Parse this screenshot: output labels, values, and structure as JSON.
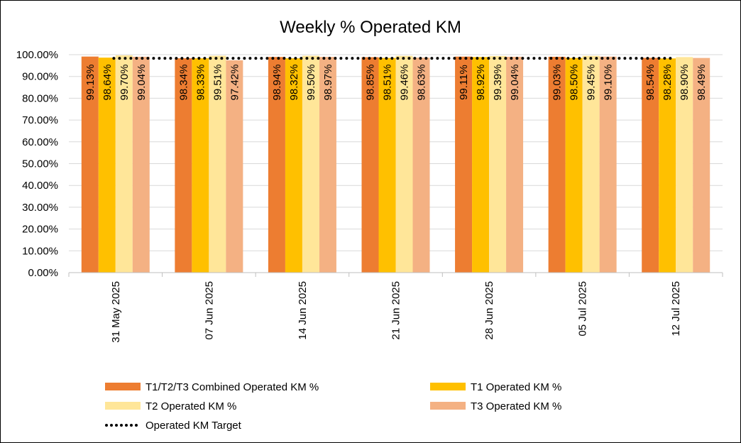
{
  "chart_data": {
    "type": "bar",
    "title": "Weekly % Operated KM",
    "categories": [
      "31 May 2025",
      "07 Jun 2025",
      "14 Jun 2025",
      "21 Jun 2025",
      "28 Jun 2025",
      "05 Jul 2025",
      "12 Jul 2025"
    ],
    "ylim": [
      0,
      100
    ],
    "yticks": [
      "0.00%",
      "10.00%",
      "20.00%",
      "30.00%",
      "40.00%",
      "50.00%",
      "60.00%",
      "70.00%",
      "80.00%",
      "90.00%",
      "100.00%"
    ],
    "grid": true,
    "legend_position": "bottom",
    "series": [
      {
        "name": "T1/T2/T3 Combined Operated KM %",
        "color": "#ED7D31",
        "values": [
          99.13,
          98.34,
          98.94,
          98.85,
          99.11,
          99.03,
          98.54
        ],
        "labels": [
          "99.13%",
          "98.34%",
          "98.94%",
          "98.85%",
          "99.11%",
          "99.03%",
          "98.54%"
        ]
      },
      {
        "name": "T1 Operated KM %",
        "color": "#FFC000",
        "values": [
          98.64,
          98.33,
          98.32,
          98.51,
          98.92,
          98.5,
          98.28
        ],
        "labels": [
          "98.64%",
          "98.33%",
          "98.32%",
          "98.51%",
          "98.92%",
          "98.50%",
          "98.28%"
        ]
      },
      {
        "name": "T2 Operated KM %",
        "color": "#FFE699",
        "values": [
          99.7,
          99.51,
          99.5,
          99.46,
          99.39,
          99.45,
          98.9
        ],
        "labels": [
          "99.70%",
          "99.51%",
          "99.50%",
          "99.46%",
          "99.39%",
          "99.45%",
          "98.90%"
        ]
      },
      {
        "name": "T3 Operated KM %",
        "color": "#F4B183",
        "values": [
          99.04,
          97.42,
          98.97,
          98.63,
          99.04,
          99.1,
          98.49
        ],
        "labels": [
          "99.04%",
          "97.42%",
          "98.97%",
          "98.63%",
          "99.04%",
          "99.10%",
          "98.49%"
        ]
      }
    ],
    "target": {
      "name": "Operated KM Target",
      "value": 99,
      "color": "#000000",
      "style": "dotted"
    }
  }
}
